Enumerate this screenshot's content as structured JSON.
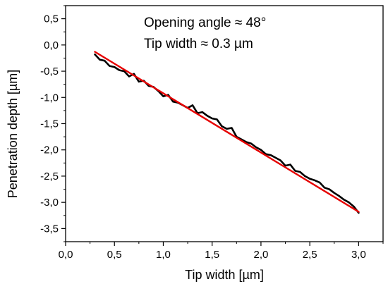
{
  "chart_data": {
    "type": "line",
    "title": "",
    "xlabel": "Tip width [µm]",
    "ylabel": "Penetration depth [µm]",
    "xlim": [
      0.0,
      3.25
    ],
    "ylim": [
      -3.75,
      0.75
    ],
    "x_ticks": [
      0.0,
      0.5,
      1.0,
      1.5,
      2.0,
      2.5,
      3.0
    ],
    "x_tick_labels": [
      "0,0",
      "0,5",
      "1,0",
      "1,5",
      "2,0",
      "2,5",
      "3,0"
    ],
    "y_ticks": [
      0.5,
      0.0,
      -0.5,
      -1.0,
      -1.5,
      -2.0,
      -2.5,
      -3.0,
      -3.5
    ],
    "y_tick_labels": [
      "0,5",
      "0,0",
      "-0,5",
      "-1,0",
      "-1,5",
      "-2,0",
      "-2,5",
      "-3,0",
      "-3,5"
    ],
    "grid": false,
    "annotations": [
      "Opening angle ≈ 48°",
      "Tip width ≈ 0.3 µm"
    ],
    "series": [
      {
        "color": "#000000",
        "x": [
          0.3,
          0.35,
          0.4,
          0.45,
          0.5,
          0.55,
          0.6,
          0.65,
          0.7,
          0.75,
          0.8,
          0.85,
          0.9,
          0.95,
          1.0,
          1.05,
          1.1,
          1.15,
          1.2,
          1.25,
          1.3,
          1.35,
          1.4,
          1.45,
          1.5,
          1.55,
          1.6,
          1.65,
          1.7,
          1.75,
          1.8,
          1.85,
          1.9,
          1.95,
          2.0,
          2.05,
          2.1,
          2.15,
          2.2,
          2.25,
          2.3,
          2.35,
          2.4,
          2.45,
          2.5,
          2.55,
          2.6,
          2.65,
          2.7,
          2.75,
          2.8,
          2.85,
          2.9,
          2.95,
          3.0
        ],
        "y": [
          -0.18,
          -0.28,
          -0.3,
          -0.4,
          -0.42,
          -0.48,
          -0.5,
          -0.6,
          -0.55,
          -0.7,
          -0.68,
          -0.78,
          -0.8,
          -0.88,
          -0.98,
          -0.95,
          -1.08,
          -1.1,
          -1.15,
          -1.2,
          -1.15,
          -1.3,
          -1.28,
          -1.35,
          -1.4,
          -1.42,
          -1.55,
          -1.6,
          -1.58,
          -1.75,
          -1.8,
          -1.85,
          -1.88,
          -1.95,
          -2.0,
          -2.08,
          -2.1,
          -2.15,
          -2.2,
          -2.3,
          -2.28,
          -2.4,
          -2.42,
          -2.5,
          -2.55,
          -2.58,
          -2.62,
          -2.72,
          -2.75,
          -2.82,
          -2.88,
          -2.95,
          -3.0,
          -3.08,
          -3.2
        ]
      },
      {
        "color": "#e60000",
        "x": [
          0.3,
          3.0
        ],
        "y": [
          -0.13,
          -3.18
        ]
      }
    ]
  }
}
